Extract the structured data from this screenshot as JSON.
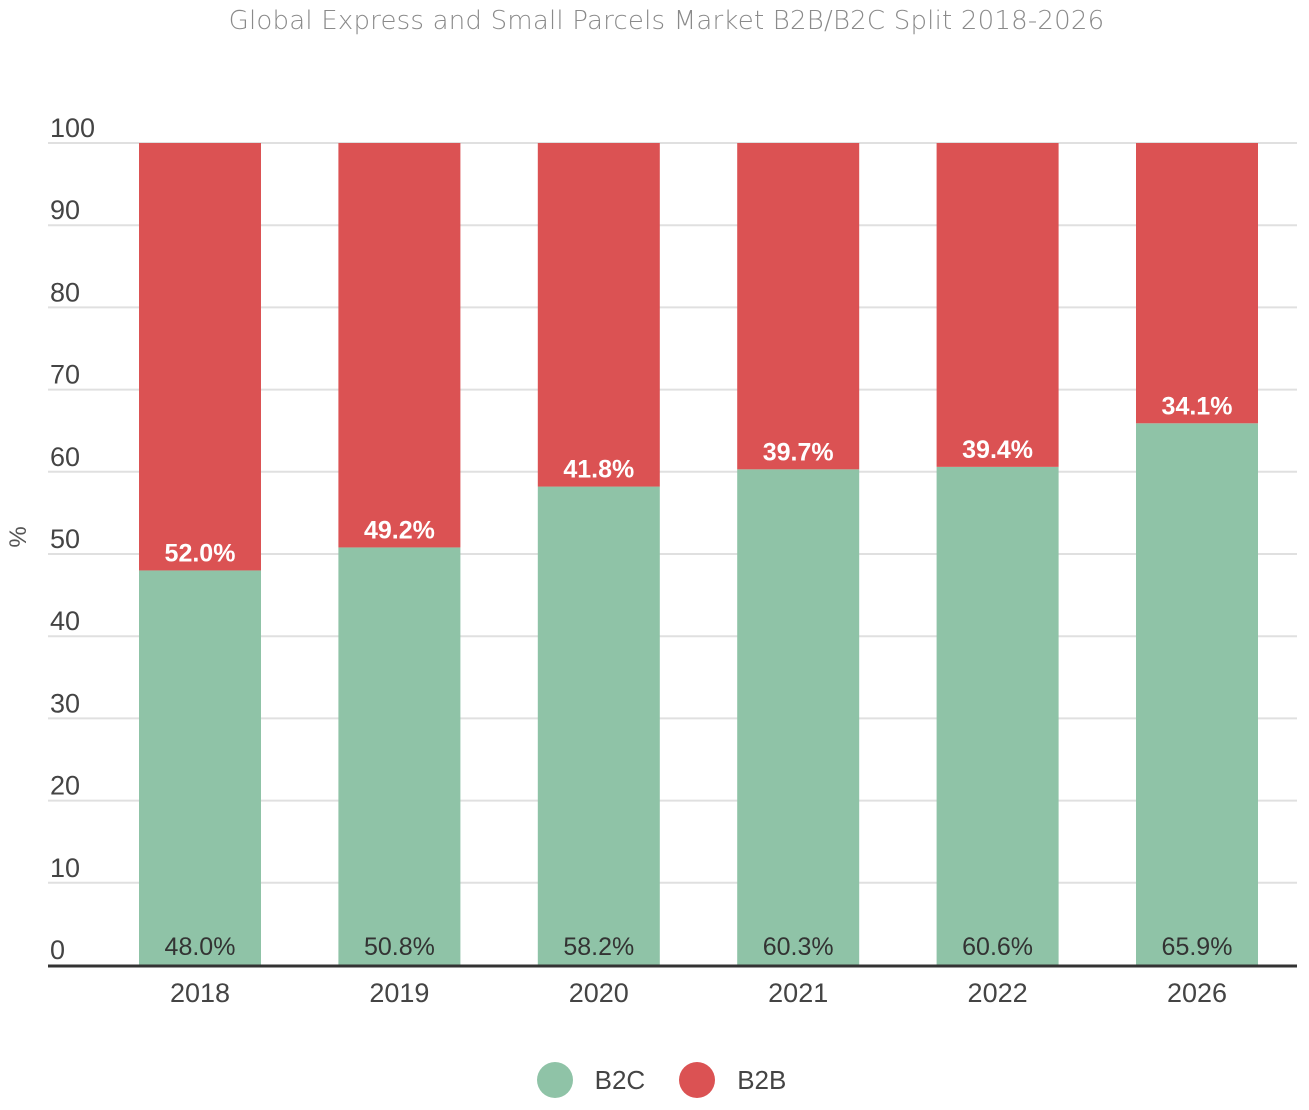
{
  "chart_data": {
    "type": "bar",
    "stacked": true,
    "title": "Global Express and Small Parcels Market B2B/B2C Split 2018-2026",
    "xlabel": "",
    "ylabel": "%",
    "ylim": [
      0,
      100
    ],
    "yticks": [
      0,
      10,
      20,
      30,
      40,
      50,
      60,
      70,
      80,
      90,
      100
    ],
    "grid": true,
    "legend_position": "bottom",
    "categories": [
      "2018",
      "2019",
      "2020",
      "2021",
      "2022",
      "2026"
    ],
    "series": [
      {
        "name": "B2C",
        "color": "#8fc3a7",
        "values": [
          48.0,
          50.8,
          58.2,
          60.3,
          60.6,
          65.9
        ],
        "labels": [
          "48.0%",
          "50.8%",
          "58.2%",
          "60.3%",
          "60.6%",
          "65.9%"
        ]
      },
      {
        "name": "B2B",
        "color": "#db5253",
        "values": [
          52.0,
          49.2,
          41.8,
          39.7,
          39.4,
          34.1
        ],
        "labels": [
          "52.0%",
          "49.2%",
          "41.8%",
          "39.7%",
          "39.4%",
          "34.1%"
        ]
      }
    ]
  }
}
